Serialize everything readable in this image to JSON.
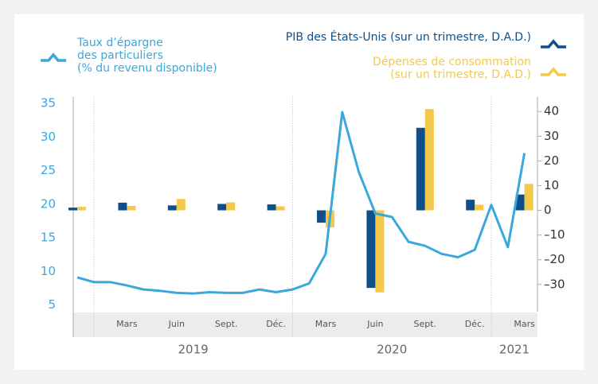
{
  "chart_data": {
    "type": "combo",
    "categories": [
      null,
      null,
      null,
      "Mars",
      null,
      null,
      "Juin",
      null,
      null,
      "Sept.",
      null,
      null,
      "Déc.",
      null,
      null,
      "Mars",
      null,
      null,
      "Juin",
      null,
      null,
      "Sept.",
      null,
      null,
      "Déc.",
      null,
      null,
      "Mars"
    ],
    "years": [
      "2019",
      "2020",
      "2021"
    ],
    "ylim": [
      4,
      36
    ],
    "yticks": [
      5,
      10,
      15,
      20,
      25,
      30,
      35
    ],
    "y2lim": [
      -41,
      46
    ],
    "y2ticks": [
      {
        "value": -30,
        "label": "–30"
      },
      {
        "value": -20,
        "label": "–20"
      },
      {
        "value": -10,
        "label": "–10"
      },
      0,
      10,
      20,
      30,
      40
    ],
    "series": [
      {
        "name": "Taux d’épargne\ndes particuliers\n(% du revenu disponible)",
        "color": "#3aa8dc",
        "kind": "line",
        "axis": "y",
        "values": [
          9.1,
          8.4,
          8.4,
          7.9,
          7.3,
          7.1,
          6.8,
          6.7,
          6.9,
          6.8,
          6.8,
          7.3,
          6.9,
          7.3,
          8.2,
          12.6,
          33.7,
          24.8,
          18.6,
          18.1,
          14.4,
          13.8,
          12.6,
          12.1,
          13.2,
          19.9,
          13.6,
          27.6
        ]
      },
      {
        "name": "PIB des États-Unis (sur un trimestre, D.A.D.)",
        "color": "#0d4f8b",
        "kind": "bar",
        "axis": "y2",
        "values": [
          1.1,
          null,
          null,
          3.1,
          null,
          null,
          2.0,
          null,
          null,
          2.6,
          null,
          null,
          2.4,
          null,
          null,
          -5.0,
          null,
          null,
          -31.4,
          null,
          null,
          33.4,
          null,
          null,
          4.3,
          null,
          null,
          6.4
        ]
      },
      {
        "name": "Dépenses de consommation\n(sur un trimestre, D.A.D.)",
        "color": "#f3c94b",
        "kind": "bar",
        "axis": "y2",
        "values": [
          1.4,
          null,
          null,
          1.8,
          null,
          null,
          4.6,
          null,
          null,
          3.2,
          null,
          null,
          1.6,
          null,
          null,
          -6.9,
          null,
          null,
          -33.2,
          null,
          null,
          41.0,
          null,
          null,
          2.3,
          null,
          null,
          10.7
        ]
      }
    ]
  }
}
